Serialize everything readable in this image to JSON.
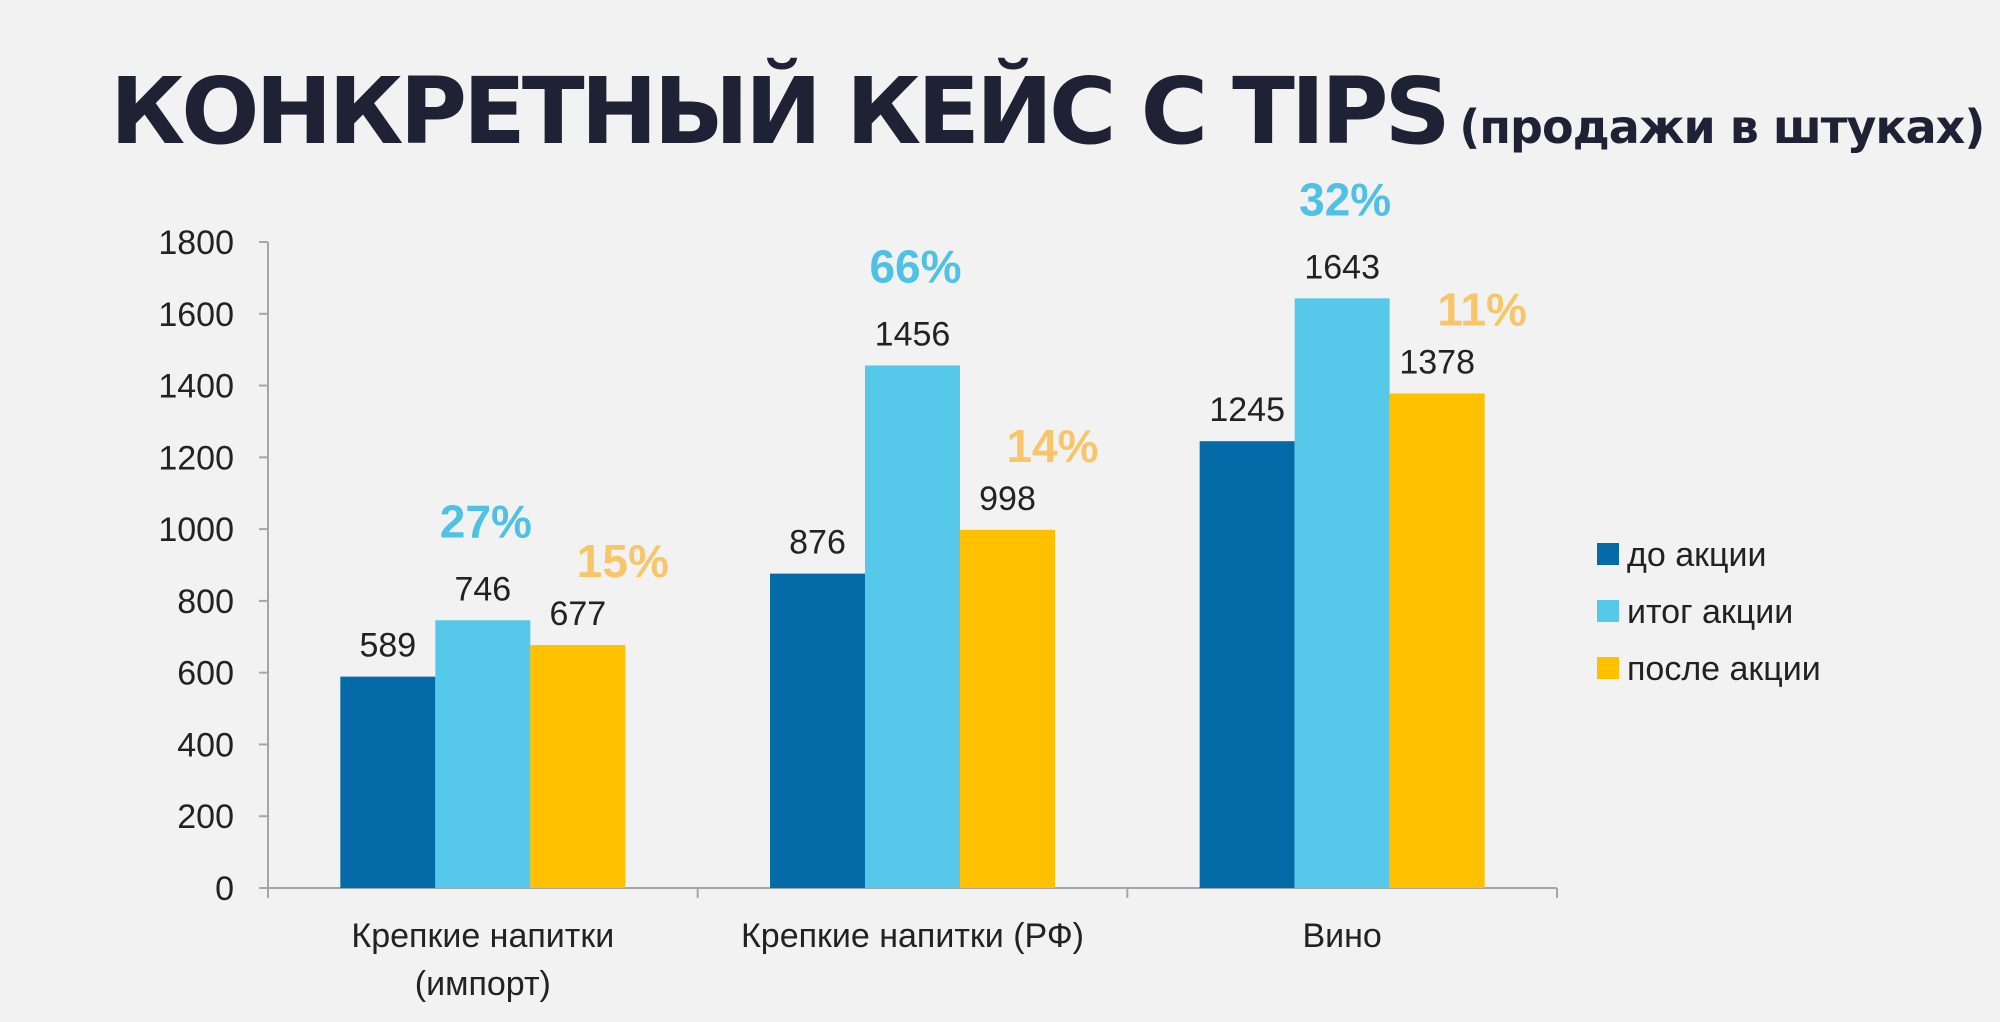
{
  "title": {
    "main": "КОНКРЕТНЫЙ КЕЙС С TIPS",
    "sub": "(продажи в штуках)"
  },
  "colors": {
    "before": "#046ba8",
    "during": "#56c9ea",
    "after": "#ffc000",
    "pct_during": "#4fc1e4",
    "pct_after": "#f7c66a",
    "axis": "#a6a6a6",
    "title": "#1f2235"
  },
  "chart_data": {
    "type": "bar",
    "categories": [
      [
        "Крепкие напитки",
        "(импорт)"
      ],
      [
        "Крепкие напитки (РФ)"
      ],
      [
        "Вино"
      ]
    ],
    "series": [
      {
        "name": "до акции",
        "values": [
          589,
          876,
          1245
        ]
      },
      {
        "name": "итог акции",
        "values": [
          746,
          1456,
          1643
        ]
      },
      {
        "name": "после акции",
        "values": [
          677,
          998,
          1378
        ]
      }
    ],
    "percent_labels": {
      "итог акции": [
        "27%",
        "66%",
        "32%"
      ],
      "после акции": [
        "15%",
        "14%",
        "11%"
      ]
    },
    "ylim": [
      0,
      1800
    ],
    "yticks": [
      0,
      200,
      400,
      600,
      800,
      1000,
      1200,
      1400,
      1600,
      1800
    ],
    "grid": false,
    "legend": "right",
    "xlabel": "",
    "ylabel": ""
  }
}
